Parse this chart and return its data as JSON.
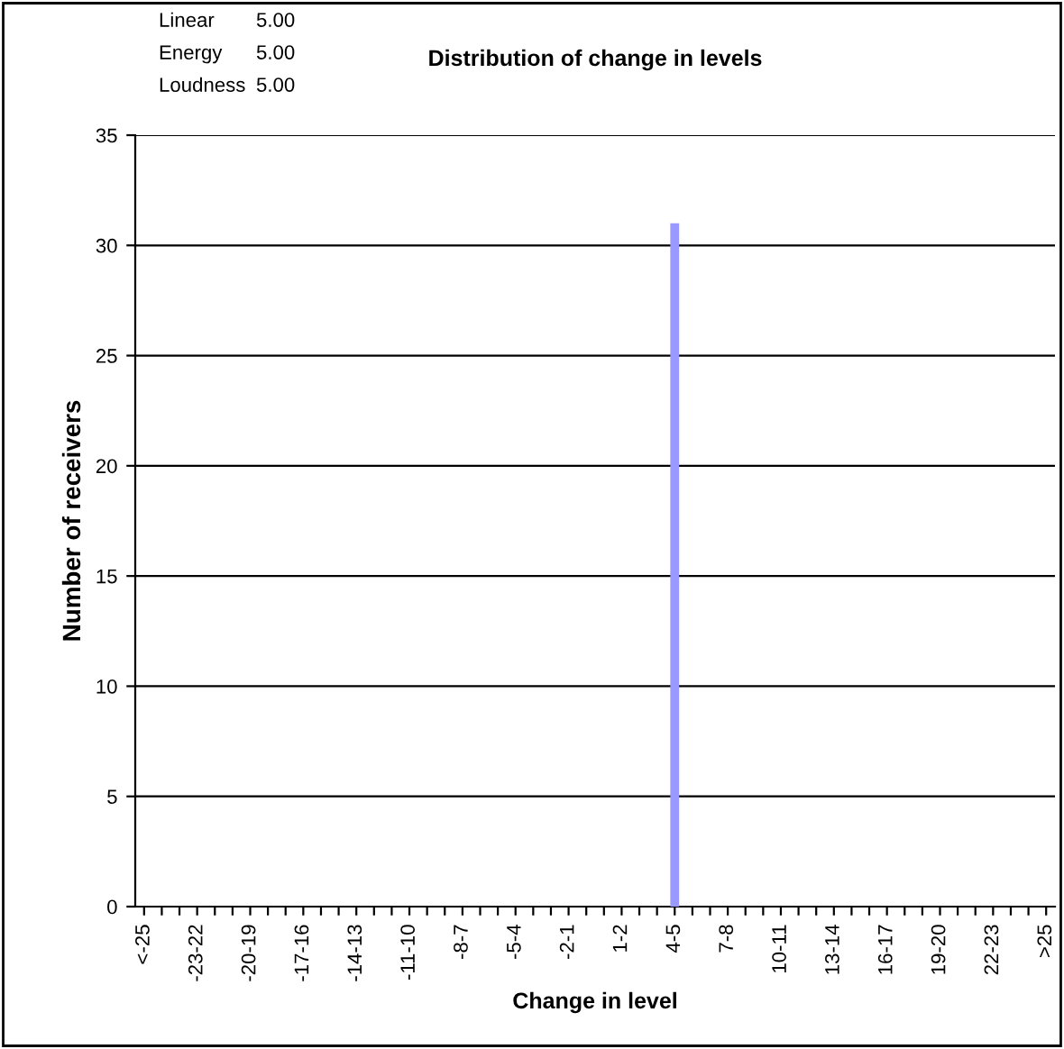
{
  "chart_data": {
    "type": "bar",
    "title": "Distribution of change in levels",
    "xlabel": "Change in level",
    "ylabel": "Number of receivers",
    "categories": [
      "<-25",
      null,
      null,
      "-23-22",
      null,
      null,
      "-20-19",
      null,
      null,
      "-17-16",
      null,
      null,
      "-14-13",
      null,
      null,
      "-11-10",
      null,
      null,
      "-8-7",
      null,
      null,
      "-5-4",
      null,
      null,
      "-2-1",
      null,
      null,
      "1-2",
      null,
      null,
      "4-5",
      null,
      null,
      "7-8",
      null,
      null,
      "10-11",
      null,
      null,
      "13-14",
      null,
      null,
      "16-17",
      null,
      null,
      "19-20",
      null,
      null,
      "22-23",
      null,
      null,
      ">25"
    ],
    "values": [
      0,
      0,
      0,
      0,
      0,
      0,
      0,
      0,
      0,
      0,
      0,
      0,
      0,
      0,
      0,
      0,
      0,
      0,
      0,
      0,
      0,
      0,
      0,
      0,
      0,
      0,
      0,
      0,
      0,
      0,
      31,
      0,
      0,
      0,
      0,
      0,
      0,
      0,
      0,
      0,
      0,
      0,
      0,
      0,
      0,
      0,
      0,
      0,
      0,
      0,
      0,
      0
    ],
    "color": "#9999ff",
    "ylim": [
      0,
      35
    ],
    "yticks": [
      0,
      5,
      10,
      15,
      20,
      25,
      30,
      35
    ],
    "grid": "y",
    "annotations": [
      "Linear",
      "5.00",
      "Energy",
      "5.00",
      "Loudness",
      "5.00"
    ]
  }
}
